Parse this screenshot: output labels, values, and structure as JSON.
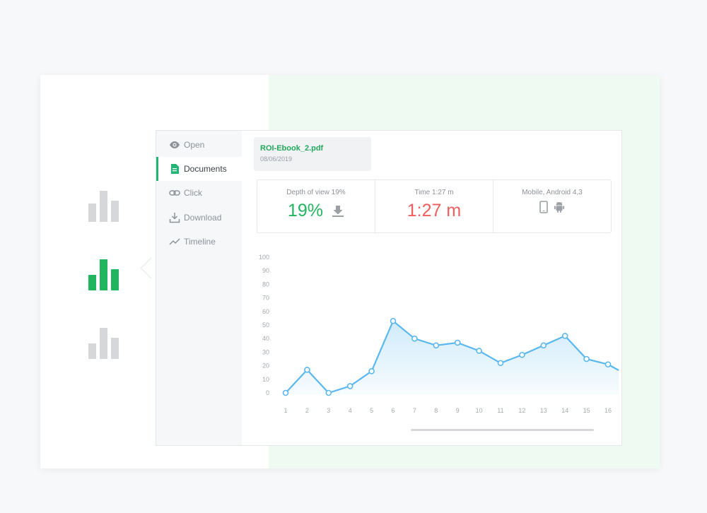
{
  "sidebar": {
    "items": [
      {
        "label": "Open",
        "icon": "eye-icon"
      },
      {
        "label": "Documents",
        "icon": "document-icon"
      },
      {
        "label": "Click",
        "icon": "link-icon"
      },
      {
        "label": "Download",
        "icon": "download-icon"
      },
      {
        "label": "Timeline",
        "icon": "trend-icon"
      }
    ],
    "active": "Documents"
  },
  "file": {
    "name": "ROI-Ebook_2.pdf",
    "date": "08/06/2019"
  },
  "metrics": [
    {
      "label": "Depth of view 19%",
      "value": "19%",
      "icon": "download-icon",
      "color": "#22b560"
    },
    {
      "label": "Time 1:27 m",
      "value": "1:27 m",
      "color": "#f15e5e"
    },
    {
      "label": "Mobile, Android 4,3",
      "icons": [
        "mobile-phone-icon",
        "android-icon"
      ]
    }
  ],
  "colors": {
    "accent": "#22b573",
    "line": "#5ab8ef",
    "chart_icon_active": "#22b560",
    "chart_icon_inactive": "#d5d7da"
  },
  "chart_data": {
    "type": "area",
    "x": [
      1,
      2,
      3,
      4,
      5,
      6,
      7,
      8,
      9,
      10,
      11,
      12,
      13,
      14,
      15,
      16
    ],
    "values": [
      0,
      17,
      0,
      5,
      16,
      53,
      40,
      35,
      37,
      31,
      22,
      28,
      35,
      42,
      25,
      21
    ],
    "yticks": [
      0,
      10,
      20,
      30,
      40,
      50,
      60,
      70,
      80,
      90,
      100
    ],
    "ylim": [
      0,
      100
    ],
    "grid": false
  }
}
